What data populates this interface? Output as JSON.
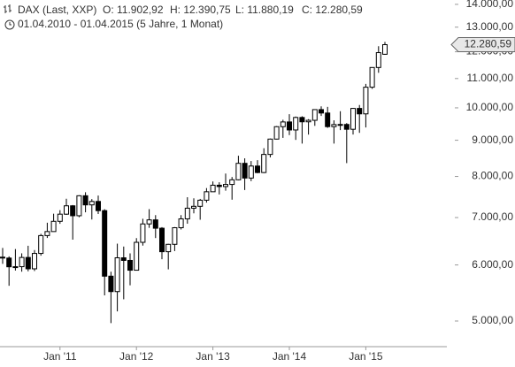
{
  "chart_data": {
    "type": "candlestick",
    "title": "DAX (Last, XXP)",
    "header_labels": [
      "O: 11.902,92",
      "H: 12.390,75",
      "L: 11.880,19",
      "C: 12.280,59"
    ],
    "subtitle": "01.04.2010 - 01.04.2015 (5 Jahre, 1 Monat)",
    "last_price_label": "12.280,59",
    "categories": [
      null,
      null,
      null,
      null,
      null,
      null,
      null,
      null,
      null,
      "Jan '11",
      null,
      null,
      null,
      null,
      null,
      null,
      null,
      null,
      null,
      null,
      null,
      "Jan '12",
      null,
      null,
      null,
      null,
      null,
      null,
      null,
      null,
      null,
      null,
      null,
      "Jan '13",
      null,
      null,
      null,
      null,
      null,
      null,
      null,
      null,
      null,
      null,
      null,
      "Jan '14",
      null,
      null,
      null,
      null,
      null,
      null,
      null,
      null,
      null,
      null,
      null,
      "Jan '15",
      null,
      null,
      null
    ],
    "open": [
      6154,
      6136,
      5964,
      5966,
      6148,
      5925,
      6229,
      6601,
      6688,
      6914,
      7077,
      7272,
      7041,
      7514,
      7294,
      7376,
      7159,
      5785,
      5502,
      6141,
      6089,
      5898,
      6458,
      6856,
      6947,
      6761,
      6264,
      6416,
      6772,
      6970,
      7216,
      7260,
      7406,
      7612,
      7776,
      7742,
      7795,
      7914,
      8349,
      7959,
      8276,
      8103,
      8594,
      9034,
      9406,
      9552,
      9306,
      9692,
      9556,
      9603,
      9943,
      9833,
      9407,
      9470,
      9474,
      9327,
      9981,
      9806,
      10694,
      11402,
      11902.92
    ],
    "high": [
      6342,
      6170,
      6318,
      6231,
      6386,
      6297,
      6639,
      6883,
      7088,
      7170,
      7441,
      7290,
      7527,
      7600,
      7433,
      7520,
      7192,
      5869,
      6430,
      6370,
      6230,
      6547,
      6972,
      7194,
      7055,
      6785,
      6426,
      6786,
      7055,
      7478,
      7451,
      7437,
      7704,
      7871,
      7851,
      8075,
      7986,
      8558,
      8486,
      8412,
      8434,
      8770,
      9050,
      9425,
      9620,
      9794,
      9722,
      9730,
      9639,
      9949,
      10050,
      10032,
      9602,
      9891,
      9516,
      9996,
      10093,
      10810,
      11402,
      12219,
      12390.75
    ],
    "low": [
      6022,
      5607,
      5892,
      5870,
      5877,
      5882,
      6183,
      6550,
      6687,
      6858,
      7061,
      6514,
      7007,
      7120,
      6956,
      7080,
      5435,
      4966,
      5159,
      5366,
      5615,
      5900,
      6389,
      6769,
      6548,
      6112,
      5915,
      6277,
      6733,
      6861,
      7096,
      6950,
      7348,
      7640,
      7545,
      7640,
      7418,
      7902,
      7655,
      7880,
      8084,
      8087,
      8511,
      9025,
      9070,
      9154,
      9010,
      8903,
      9167,
      9431,
      9738,
      9370,
      8903,
      9302,
      8355,
      9170,
      9219,
      9382,
      10635,
      11207,
      11880.19
    ],
    "close": [
      6136,
      5964,
      5966,
      6148,
      5925,
      6229,
      6601,
      6688,
      6914,
      7077,
      7272,
      7041,
      7514,
      7294,
      7376,
      7159,
      5785,
      5502,
      6141,
      6089,
      5898,
      6458,
      6856,
      6947,
      6761,
      6264,
      6416,
      6772,
      6970,
      7216,
      7260,
      7406,
      7612,
      7776,
      7742,
      7795,
      7914,
      8349,
      7959,
      8276,
      8103,
      8594,
      9034,
      9406,
      9552,
      9306,
      9692,
      9556,
      9603,
      9943,
      9833,
      9407,
      9470,
      9474,
      9327,
      9981,
      9806,
      10694,
      11402,
      11966,
      12280.59
    ],
    "up_color": "#ffffff",
    "down_color": "#000000",
    "log_scale": true,
    "ylim": [
      4600,
      14200
    ],
    "yticks": [
      {
        "value": 5000,
        "label": "5.000,00"
      },
      {
        "value": 6000,
        "label": "6.000,00"
      },
      {
        "value": 7000,
        "label": "7.000,00"
      },
      {
        "value": 8000,
        "label": "8.000,00"
      },
      {
        "value": 9000,
        "label": "9.000,00"
      },
      {
        "value": 10000,
        "label": "10.000,00"
      },
      {
        "value": 11000,
        "label": "11.000,00"
      },
      {
        "value": 12000,
        "label": "12.000,00"
      },
      {
        "value": 13000,
        "label": "13.000,00"
      },
      {
        "value": 14000,
        "label": "14.000,00"
      }
    ]
  }
}
